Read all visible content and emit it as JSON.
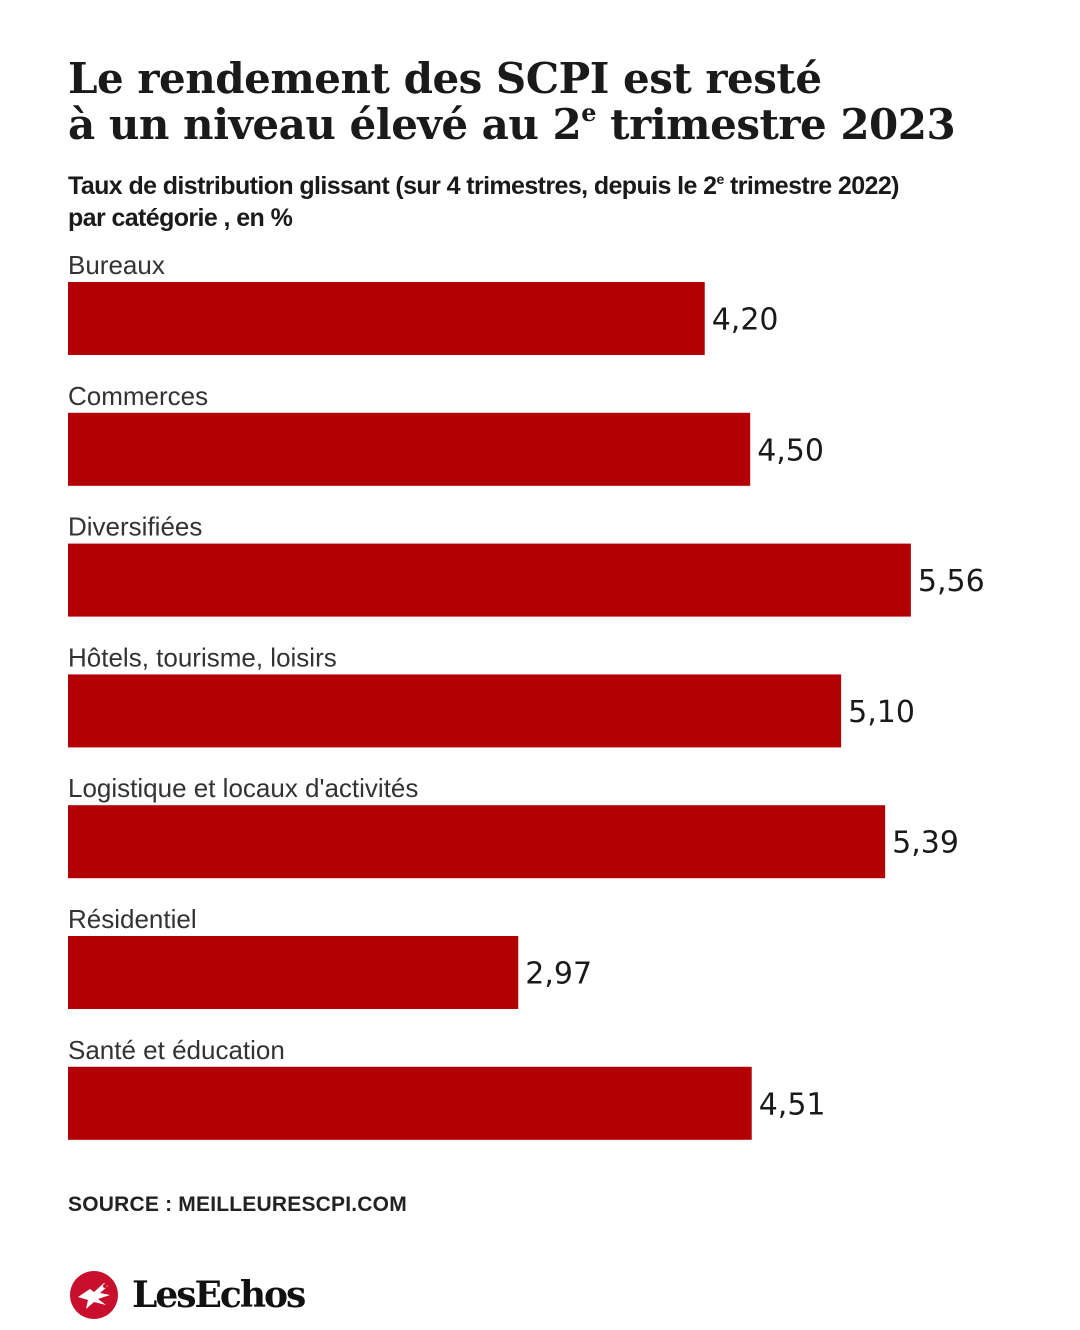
{
  "title_line1": "Le rendement des SCPI est resté",
  "title_line2_pre": "à un niveau élevé au 2",
  "title_line2_sup": "e",
  "title_line2_post": " trimestre 2023",
  "subtitle_pre": "Taux de distribution glissant (sur 4 trimestres, depuis le 2",
  "subtitle_sup": "e",
  "subtitle_post": " trimestre 2022)",
  "subtitle_line2": "par catégorie , en %",
  "source": "SOURCE : MEILLEURESCPI.COM",
  "brand": "LesEchos",
  "colors": {
    "bar": "#b30005",
    "logo": "#c8102e"
  },
  "chart_data": {
    "type": "bar",
    "orientation": "horizontal",
    "categories": [
      "Bureaux",
      "Commerces",
      "Diversifiées",
      "Hôtels, tourisme, loisirs",
      "Logistique et locaux d'activités",
      "Résidentiel",
      "Santé et éducation"
    ],
    "values": [
      4.2,
      4.5,
      5.56,
      5.1,
      5.39,
      2.97,
      4.51
    ],
    "value_labels": [
      "4,20",
      "4,50",
      "5,56",
      "5,10",
      "5,39",
      "2,97",
      "4,51"
    ],
    "unit": "%",
    "grid": false,
    "legend": "none"
  }
}
